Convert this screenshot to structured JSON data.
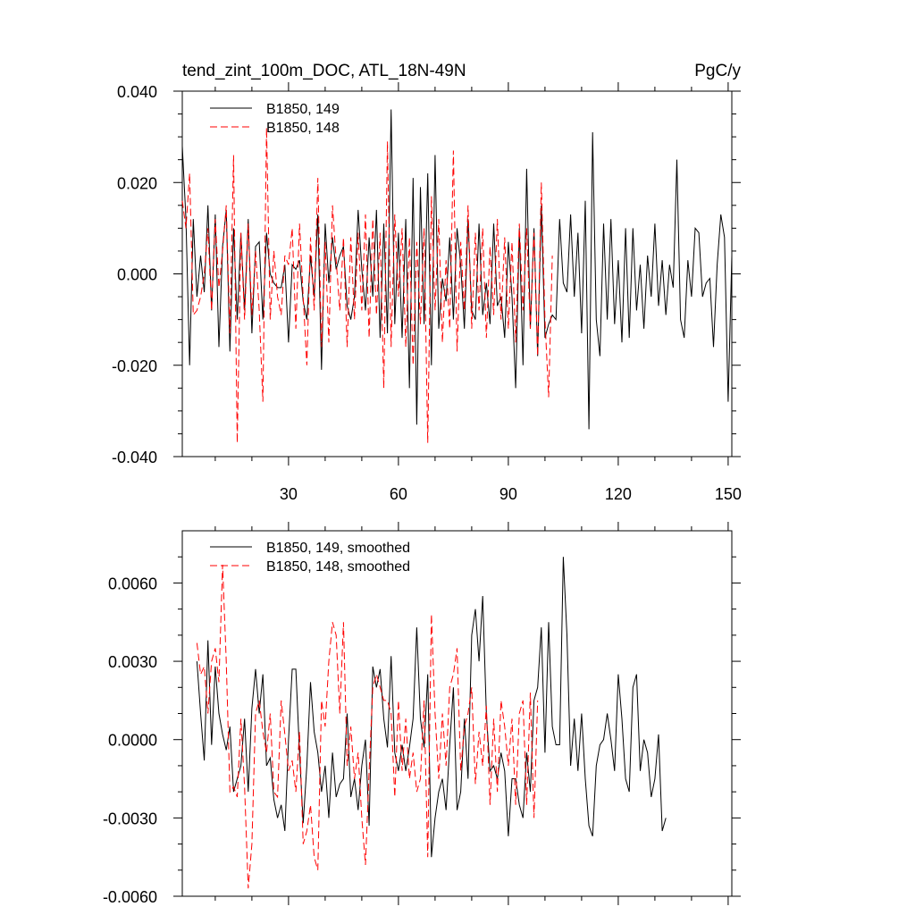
{
  "chart_data": [
    {
      "type": "line",
      "title": "tend_zint_100m_DOC, ATL_18N-49N",
      "units": "PgC/y",
      "xlim": [
        1,
        151
      ],
      "ylim": [
        -0.04,
        0.04
      ],
      "x_ticks": [
        30,
        60,
        90,
        120,
        150
      ],
      "x_tick_labels": [
        "30",
        "60",
        "90",
        "120",
        "150"
      ],
      "y_ticks": [
        -0.04,
        -0.02,
        0.0,
        0.02,
        0.04
      ],
      "y_tick_labels": [
        "-0.040",
        "-0.020",
        "0.000",
        "0.020",
        "0.040"
      ],
      "legend": {
        "location": "top-left"
      },
      "series": [
        {
          "name": "B1850, 149",
          "color": "#000000",
          "style": "solid",
          "x_start": 1,
          "values": [
            0.028,
            0.012,
            -0.02,
            0.012,
            -0.005,
            0.004,
            -0.004,
            0.015,
            -0.008,
            0.013,
            -0.016,
            0.006,
            0.014,
            -0.017,
            0.01,
            -0.01,
            0.009,
            -0.008,
            0.012,
            -0.013,
            0.006,
            0.007,
            -0.01,
            0.009,
            0.0,
            -0.002,
            -0.003,
            -0.003,
            0.002,
            -0.015,
            0.002,
            0.001,
            0.003,
            -0.006,
            -0.01,
            0.004,
            -0.005,
            0.013,
            -0.021,
            0.011,
            -0.002,
            0.008,
            0.001,
            0.004,
            0.006,
            -0.007,
            -0.01,
            -0.005,
            0.014,
            0.001,
            -0.008,
            0.008,
            -0.005,
            0.014,
            -0.014,
            0.011,
            -0.013,
            0.036,
            -0.011,
            0.009,
            -0.014,
            0.012,
            -0.025,
            0.021,
            -0.033,
            0.019,
            -0.011,
            0.022,
            -0.02,
            0.026,
            -0.012,
            -0.001,
            -0.006,
            0.008,
            -0.01,
            0.01,
            0.002,
            -0.012,
            0.012,
            -0.008,
            -0.01,
            0.011,
            -0.009,
            -0.002,
            -0.011,
            0.011,
            -0.007,
            -0.005,
            -0.014,
            0.007,
            -0.005,
            -0.025,
            0.01,
            -0.02,
            0.023,
            -0.012,
            0.01,
            -0.018,
            0.015,
            -0.014,
            -0.011,
            -0.009,
            -0.01,
            0.012,
            -0.002,
            -0.004,
            0.013,
            -0.005,
            0.009,
            -0.013,
            0.016,
            -0.034,
            0.031,
            -0.01,
            -0.018,
            0.011,
            -0.01,
            0.012,
            -0.011,
            0.003,
            -0.015,
            0.01,
            -0.014,
            0.01,
            -0.008,
            0.002,
            -0.012,
            0.004,
            -0.005,
            0.011,
            -0.007,
            0.003,
            -0.009,
            0.002,
            -0.003,
            0.025,
            -0.01,
            -0.014,
            0.003,
            -0.005,
            0.01,
            0.009,
            -0.005,
            -0.002,
            -0.001,
            -0.016,
            0.002,
            0.013,
            0.008,
            -0.028,
            0.004
          ]
        },
        {
          "name": "B1850, 148",
          "color": "#ff0000",
          "style": "dashed",
          "x_start": 1,
          "values": [
            0.016,
            0.01,
            0.022,
            -0.009,
            -0.008,
            -0.005,
            0.0,
            0.01,
            -0.008,
            0.012,
            -0.003,
            0.005,
            0.015,
            -0.013,
            0.026,
            -0.037,
            0.009,
            -0.01,
            0.011,
            -0.009,
            0.005,
            -0.008,
            -0.028,
            0.032,
            -0.01,
            0.005,
            -0.005,
            -0.009,
            0.004,
            0.002,
            0.01,
            -0.012,
            0.011,
            -0.005,
            -0.02,
            0.008,
            -0.008,
            0.021,
            -0.016,
            0.007,
            -0.015,
            0.015,
            0.003,
            -0.008,
            0.008,
            -0.016,
            0.008,
            -0.01,
            0.009,
            -0.008,
            0.013,
            -0.014,
            0.012,
            -0.009,
            0.009,
            -0.025,
            0.029,
            -0.016,
            0.013,
            -0.005,
            0.01,
            -0.016,
            0.008,
            -0.02,
            0.007,
            -0.011,
            0.01,
            -0.037,
            0.017,
            -0.008,
            0.012,
            -0.015,
            0.003,
            -0.012,
            0.027,
            -0.017,
            0.007,
            -0.008,
            0.015,
            -0.012,
            0.009,
            -0.008,
            0.01,
            -0.014,
            0.006,
            -0.009,
            0.012,
            -0.01,
            0.008,
            -0.012,
            0.007,
            -0.015,
            0.011,
            -0.008,
            0.01,
            -0.012,
            0.009,
            -0.018,
            0.02,
            -0.01,
            -0.027,
            0.004
          ]
        }
      ]
    },
    {
      "type": "line",
      "xlim": [
        1,
        151
      ],
      "ylim": [
        -0.006,
        0.008
      ],
      "x_ticks": [
        30,
        60,
        90,
        120,
        150
      ],
      "y_ticks": [
        -0.006,
        -0.003,
        0.0,
        0.003,
        0.006
      ],
      "y_tick_labels": [
        "-0.0060",
        "-0.0030",
        "0.0000",
        "0.0030",
        "0.0060"
      ],
      "legend": {
        "location": "top-left"
      },
      "series": [
        {
          "name": "B1850, 149, smoothed",
          "color": "#000000",
          "style": "solid",
          "x_start": 5,
          "values": [
            0.003,
            0.001,
            -0.0008,
            0.0038,
            -0.0002,
            0.0028,
            0.001,
            0.0002,
            -0.0004,
            0.0005,
            -0.002,
            -0.0015,
            -0.001,
            0.0008,
            -0.002,
            0.0012,
            0.0027,
            0.001,
            0.0025,
            -0.001,
            -0.0007,
            -0.0023,
            -0.003,
            -0.0025,
            -0.0035,
            0.0,
            0.0027,
            0.0027,
            -0.0005,
            -0.0032,
            -0.001,
            0.0022,
            0.0003,
            -0.0005,
            -0.002,
            -0.001,
            -0.003,
            -0.0005,
            -0.0022,
            -0.0017,
            -0.0015,
            0.001,
            -0.0022,
            -0.0015,
            -0.0027,
            -0.001,
            0.0,
            -0.0033,
            0.0028,
            0.002,
            0.0027,
            0.0008,
            -0.0003,
            0.0032,
            -0.0005,
            -0.0012,
            -0.0002,
            -0.0012,
            -0.0003,
            0.0008,
            0.0043,
            0.0008,
            -0.0003,
            0.0025,
            -0.0045,
            -0.003,
            -0.002,
            -0.0015,
            -0.0027,
            -0.0002,
            0.002,
            -0.0027,
            -0.002,
            0.0008,
            -0.0015,
            0.004,
            0.005,
            0.003,
            0.0055,
            0.001,
            -0.0012,
            -0.001,
            -0.0015,
            -0.0005,
            -0.0012,
            -0.0037,
            -0.0015,
            -0.0015,
            -0.0025,
            -0.003,
            -0.0005,
            -0.002,
            0.0015,
            0.002,
            0.0043,
            -0.0005,
            0.0045,
            0.0005,
            -0.0002,
            -0.0002,
            0.007,
            0.004,
            -0.001,
            0.0008,
            -0.0012,
            0.001,
            -0.0015,
            -0.0033,
            -0.0037,
            -0.001,
            -0.0002,
            0.0,
            0.001,
            0.0,
            -0.0012,
            0.0025,
            0.0008,
            -0.0015,
            -0.002,
            0.002,
            0.0025,
            -0.0012,
            0.0,
            -0.0005,
            -0.0022,
            -0.0015,
            0.0002,
            -0.0035,
            -0.003
          ]
        },
        {
          "name": "B1850, 148, smoothed",
          "color": "#ff0000",
          "style": "dashed",
          "x_start": 5,
          "values": [
            0.0037,
            0.0025,
            0.0028,
            0.001,
            0.003,
            0.0035,
            0.0022,
            0.0067,
            0.003,
            -0.002,
            -0.0018,
            -0.0022,
            0.0008,
            -0.0018,
            -0.0057,
            -0.004,
            0.001,
            0.0015,
            0.0003,
            -0.0005,
            0.001,
            -0.002,
            -0.0022,
            0.0015,
            0.0002,
            -0.0012,
            -0.0008,
            -0.002,
            0.0003,
            -0.004,
            -0.0035,
            -0.0025,
            -0.0045,
            -0.005,
            0.0015,
            0.0005,
            0.003,
            0.0045,
            0.004,
            0.001,
            0.0045,
            -0.001,
            0.0005,
            -0.0015,
            -0.0005,
            -0.003,
            -0.0048,
            -0.0012,
            0.002,
            0.0025,
            0.002,
            0.0015,
            0.0015,
            0.001,
            -0.0022,
            0.0015,
            -0.0012,
            0.0008,
            -0.0015,
            -0.0005,
            -0.002,
            -0.0015,
            0.0015,
            -0.0045,
            0.0048,
            0.001,
            -0.0015,
            0.001,
            -0.001,
            0.002,
            0.0025,
            0.0035,
            -0.0012,
            0.0005,
            0.001,
            0.002,
            -0.0017,
            0.0003,
            -0.001,
            0.0013,
            -0.0025,
            0.0008,
            -0.002,
            0.0015,
            0.0005,
            -0.001,
            0.0008,
            -0.0025,
            0.001,
            0.0015,
            -0.0025,
            0.0018,
            -0.003,
            0.0015
          ]
        }
      ]
    }
  ]
}
